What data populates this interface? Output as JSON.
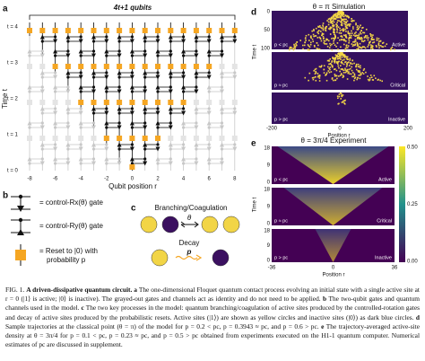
{
  "panel_a": {
    "label": "a",
    "title": "4t+1 qubits",
    "time_labels": [
      "t = 0",
      "t = 1",
      "t = 2",
      "t = 3",
      "t = 4"
    ],
    "y_axis": "Time t",
    "x_ticks": [
      "-8",
      "-6",
      "-4",
      "-2",
      "0",
      "2",
      "4",
      "6",
      "8"
    ],
    "x_axis": "Qubit position r"
  },
  "panel_b": {
    "label": "b",
    "gate_x": "= control-Rx(θ) gate",
    "gate_y": "= control-Ry(θ) gate",
    "reset_1": "= Reset to |0⟩ with",
    "reset_2": "probability p"
  },
  "panel_c": {
    "label": "c",
    "branching": "Branching/Coagulation",
    "theta": "θ",
    "decay": "Decay",
    "p": "p"
  },
  "panel_d": {
    "label": "d",
    "title": "θ = π Simulation",
    "y_axis": "Time t",
    "yticks": [
      "0",
      "50",
      "100"
    ],
    "xticks": [
      "-200",
      "0",
      "200"
    ],
    "x_axis": "Position r",
    "rows": [
      {
        "cond": "p < pc",
        "state": "Active"
      },
      {
        "cond": "p ≈ pc",
        "state": "Critical"
      },
      {
        "cond": "p > pc",
        "state": "Inactive"
      }
    ]
  },
  "panel_e": {
    "label": "e",
    "title": "θ = 3π/4 Experiment",
    "y_axis": "Time t",
    "yticks": [
      "18",
      "9",
      "0"
    ],
    "xticks": [
      "-36",
      "0",
      "36"
    ],
    "x_axis": "Position r",
    "colorbar": [
      "0.50",
      "0.25",
      "0.00"
    ],
    "rows": [
      {
        "cond": "p < pc",
        "state": "Active"
      },
      {
        "cond": "p ≈ pc",
        "state": "Critical"
      },
      {
        "cond": "p > pc",
        "state": "Inactive"
      }
    ]
  },
  "caption": [
    "FIG. 1.",
    "A driven-dissipative quantum circuit.",
    "a",
    "The one-dimensional Floquet quantum contact process evolving an initial state with a single active site at r = 0 (|1⟩ is active; |0⟩ is inactive). The grayed-out gates and channels act as identity and do not need to be applied.",
    "b",
    "The two-qubit gates and quantum channels used in the model.",
    "c",
    "The two key processes in the model: quantum branching/coagulation of active sites produced by the controlled-rotation gates and decay of active sites produced by the probabilistic resets. Active sites (|1⟩) are shown as yellow circles and inactive sites (|0⟩) as dark blue circles.",
    "d",
    "Sample trajectories at the classical point (θ = π) of the model for p = 0.2 < pc, p = 0.3943 ≈ pc, and p = 0.6 > pc.",
    "e",
    "The trajectory-averaged active-site density at θ = 3π/4 for p = 0.1 < pc, p = 0.23 ≈ pc, and p = 0.5 > pc obtained from experiments executed on the H1-1 quantum computer. Numerical estimates of pc are discussed in supplement."
  ]
}
